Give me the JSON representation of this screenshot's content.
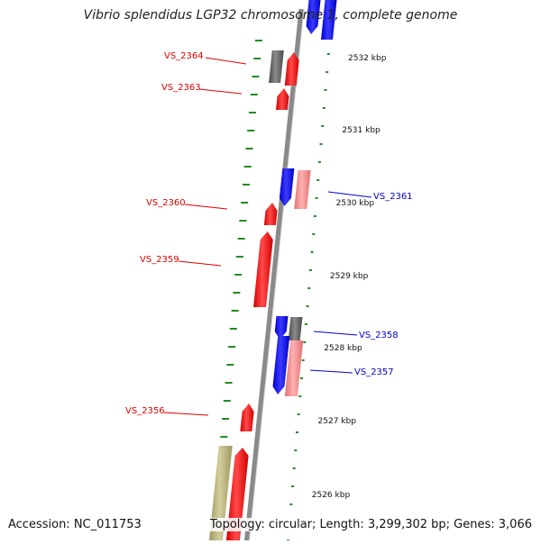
{
  "title": "Vibrio splendidus LGP32 chromosome 1, complete genome",
  "footer": {
    "accession": "Accession: NC_011753",
    "summary": "Topology: circular; Length: 3,299,302 bp; Genes: 3,066"
  },
  "colors": {
    "forward_gene": "#ff0000",
    "forward_gene_light": "#f08080",
    "reverse_gene": "#0000ff",
    "gray_feature": "#666666",
    "olive_feature": "#b5b07a",
    "backbone": "#8a8a8a",
    "tick": "#228b22",
    "red_label": "#e00000",
    "blue_label": "#0000cc"
  },
  "scale_labels": [
    "2532 kbp",
    "2531 kbp",
    "2530 kbp",
    "2529 kbp",
    "2528 kbp",
    "2527 kbp",
    "2526 kbp"
  ],
  "gene_labels": [
    {
      "id": "VS_2364",
      "strand": "forward"
    },
    {
      "id": "VS_2363",
      "strand": "forward"
    },
    {
      "id": "VS_2360",
      "strand": "forward"
    },
    {
      "id": "VS_2359",
      "strand": "forward"
    },
    {
      "id": "VS_2356",
      "strand": "forward"
    },
    {
      "id": "VS_2361",
      "strand": "reverse"
    },
    {
      "id": "VS_2358",
      "strand": "reverse"
    },
    {
      "id": "VS_2357",
      "strand": "reverse"
    }
  ]
}
